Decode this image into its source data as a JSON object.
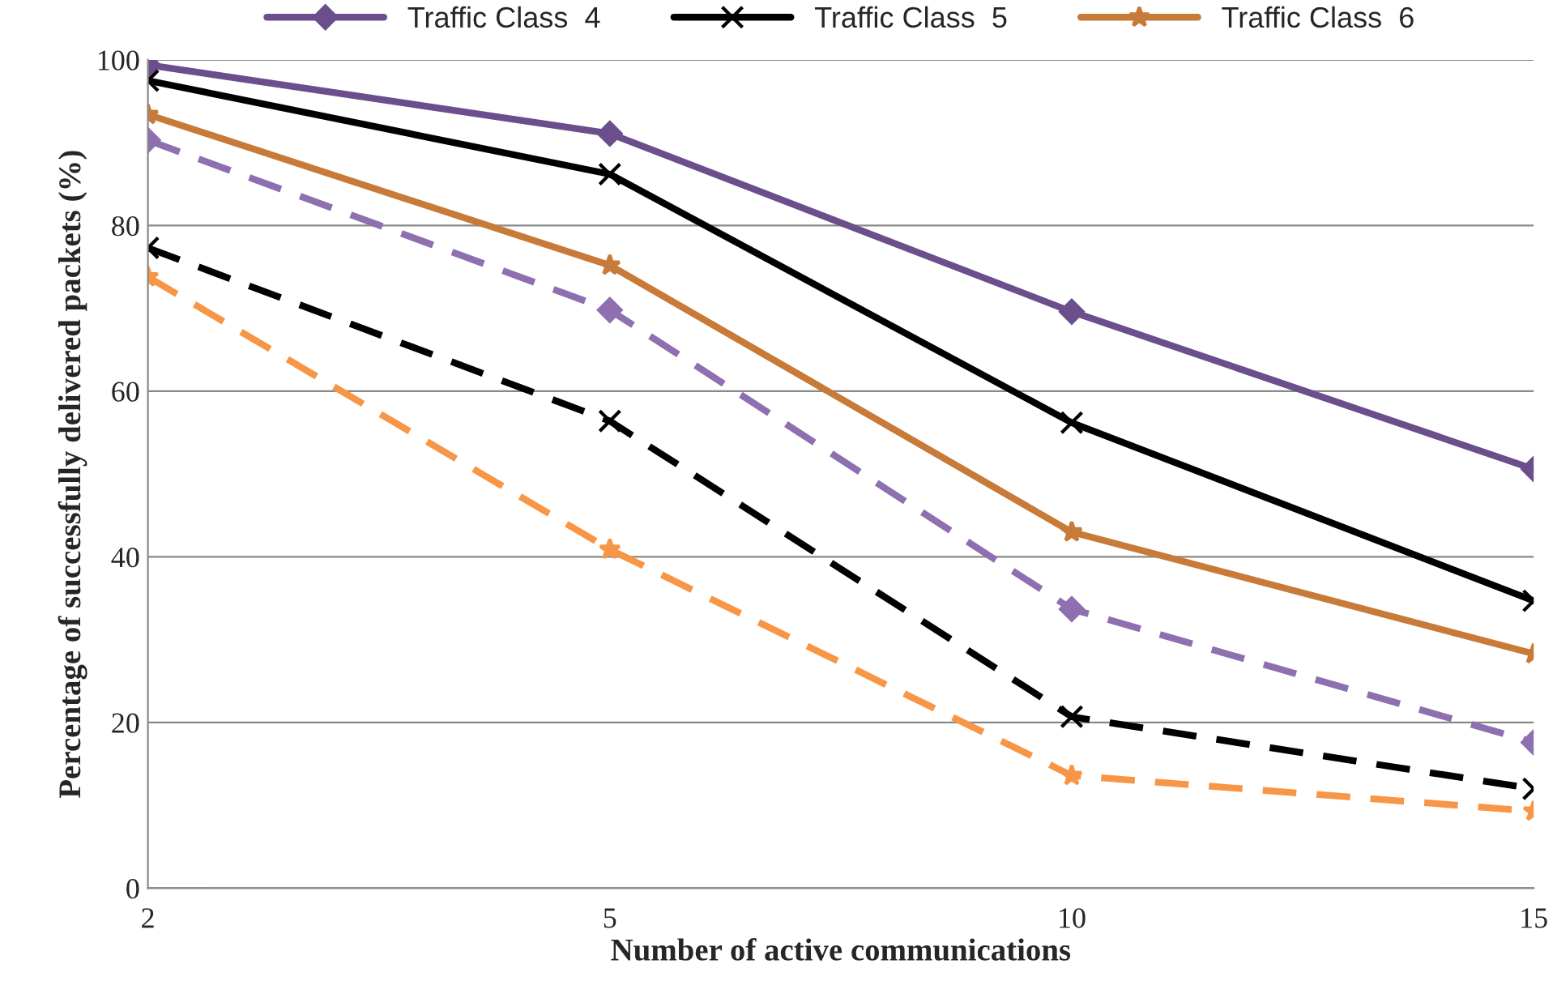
{
  "chart_data": {
    "type": "line",
    "xlabel": "Number of active communications",
    "ylabel": "Percentage of successfully delivered packets (%)",
    "categories": [
      "2",
      "5",
      "10",
      "15"
    ],
    "ylim": [
      0,
      100
    ],
    "yticks": [
      0,
      20,
      40,
      60,
      80,
      100
    ],
    "grid": "y",
    "legend": "top",
    "series": [
      {
        "name": "Traffic Class  4",
        "color": "#6a4f8c",
        "marker": "diamond",
        "line_style": "solid",
        "values": [
          99.4,
          91.1,
          69.6,
          50.6
        ]
      },
      {
        "name": "Traffic Class  5",
        "color": "#000000",
        "marker": "cross",
        "line_style": "solid",
        "values": [
          97.5,
          86.2,
          56.2,
          34.7
        ]
      },
      {
        "name": "Traffic Class  6",
        "color": "#c87a38",
        "marker": "star",
        "line_style": "solid",
        "values": [
          93.4,
          75.2,
          43.0,
          28.3
        ]
      },
      {
        "color": "#8e70b0",
        "marker": "diamond",
        "line_style": "dashed",
        "values": [
          90.3,
          69.8,
          33.7,
          17.6
        ]
      },
      {
        "color": "#000000",
        "marker": "cross",
        "line_style": "dashed",
        "values": [
          77.3,
          56.4,
          20.7,
          12.0
        ]
      },
      {
        "color": "#f79646",
        "marker": "star",
        "line_style": "dashed",
        "values": [
          73.8,
          40.9,
          13.6,
          9.3
        ]
      }
    ]
  }
}
